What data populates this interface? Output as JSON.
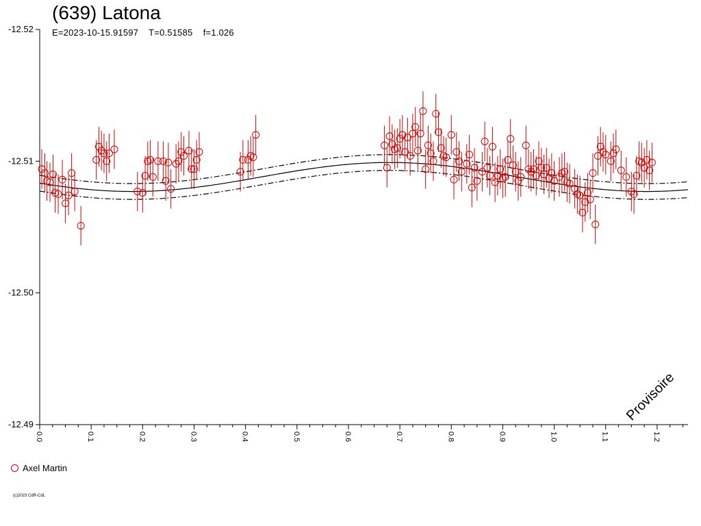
{
  "title": "(639) Latona",
  "subtitle": {
    "epoch": "E=2023-10-15.91597",
    "period": "T=0.51585",
    "f": "f=1.026"
  },
  "watermark": "Provisoire",
  "copyright": "(c)2023 CdR-CdL",
  "legend": [
    {
      "label": "Axel Martin",
      "color": "#d00000",
      "marker": "open-circle"
    }
  ],
  "chart_data": {
    "type": "scatter",
    "title": "(639) Latona",
    "x_range": [
      0,
      1.26
    ],
    "y_range": [
      -12.52,
      -12.49
    ],
    "y_inverted": true,
    "x_ticks": [
      "0.0",
      "0.1",
      "0.2",
      "0.3",
      "0.4",
      "0.5",
      "0.6",
      "0.7",
      "0.8",
      "0.9",
      "1.0",
      "1.1",
      "1.2"
    ],
    "y_ticks": [
      "-12.52",
      "-12.51",
      "-12.50",
      "-12.49"
    ],
    "model_curve": {
      "mean": -12.5088,
      "amplitude": 0.0011,
      "peak_phase": 0.68,
      "envelope": 0.0006,
      "color": "#000000"
    },
    "series": [
      {
        "name": "Axel Martin",
        "color": "#d00000",
        "error": 0.0015,
        "points": [
          [
            0.004,
            -12.5094
          ],
          [
            0.01,
            -12.5091
          ],
          [
            0.014,
            -12.5085
          ],
          [
            0.02,
            -12.5084
          ],
          [
            0.026,
            -12.509
          ],
          [
            0.03,
            -12.5076
          ],
          [
            0.036,
            -12.5075
          ],
          [
            0.044,
            -12.5086
          ],
          [
            0.05,
            -12.5068
          ],
          [
            0.056,
            -12.5074
          ],
          [
            0.062,
            -12.5091
          ],
          [
            0.068,
            -12.5077
          ],
          [
            0.08,
            -12.5051
          ],
          [
            0.11,
            -12.5101
          ],
          [
            0.115,
            -12.5111
          ],
          [
            0.12,
            -12.5108
          ],
          [
            0.125,
            -12.5106
          ],
          [
            0.13,
            -12.51
          ],
          [
            0.135,
            -12.5106
          ],
          [
            0.145,
            -12.5109
          ],
          [
            0.19,
            -12.5077
          ],
          [
            0.2,
            -12.5076
          ],
          [
            0.205,
            -12.5089
          ],
          [
            0.21,
            -12.51
          ],
          [
            0.215,
            -12.5101
          ],
          [
            0.22,
            -12.5088
          ],
          [
            0.23,
            -12.51
          ],
          [
            0.24,
            -12.51
          ],
          [
            0.245,
            -12.5085
          ],
          [
            0.25,
            -12.5099
          ],
          [
            0.255,
            -12.5079
          ],
          [
            0.265,
            -12.5098
          ],
          [
            0.27,
            -12.51
          ],
          [
            0.275,
            -12.5107
          ],
          [
            0.28,
            -12.5104
          ],
          [
            0.29,
            -12.5108
          ],
          [
            0.295,
            -12.5094
          ],
          [
            0.3,
            -12.5094
          ],
          [
            0.305,
            -12.5101
          ],
          [
            0.31,
            -12.5107
          ],
          [
            0.39,
            -12.5092
          ],
          [
            0.395,
            -12.5101
          ],
          [
            0.405,
            -12.5101
          ],
          [
            0.41,
            -12.5104
          ],
          [
            0.415,
            -12.5103
          ],
          [
            0.42,
            -12.512
          ],
          [
            0.67,
            -12.5112
          ],
          [
            0.675,
            -12.5095
          ],
          [
            0.68,
            -12.5119
          ],
          [
            0.685,
            -12.5113
          ],
          [
            0.69,
            -12.5109
          ],
          [
            0.695,
            -12.511
          ],
          [
            0.7,
            -12.5117
          ],
          [
            0.705,
            -12.512
          ],
          [
            0.71,
            -12.5107
          ],
          [
            0.715,
            -12.5118
          ],
          [
            0.72,
            -12.5104
          ],
          [
            0.725,
            -12.5121
          ],
          [
            0.73,
            -12.5126
          ],
          [
            0.735,
            -12.5108
          ],
          [
            0.74,
            -12.5121
          ],
          [
            0.745,
            -12.5138
          ],
          [
            0.75,
            -12.5094
          ],
          [
            0.755,
            -12.5112
          ],
          [
            0.76,
            -12.5106
          ],
          [
            0.765,
            -12.51
          ],
          [
            0.77,
            -12.5136
          ],
          [
            0.775,
            -12.5122
          ],
          [
            0.78,
            -12.511
          ],
          [
            0.785,
            -12.5104
          ],
          [
            0.79,
            -12.5103
          ],
          [
            0.8,
            -12.512
          ],
          [
            0.805,
            -12.5086
          ],
          [
            0.81,
            -12.5107
          ],
          [
            0.815,
            -12.51
          ],
          [
            0.82,
            -12.5092
          ],
          [
            0.83,
            -12.5098
          ],
          [
            0.835,
            -12.5105
          ],
          [
            0.84,
            -12.508
          ],
          [
            0.845,
            -12.5095
          ],
          [
            0.85,
            -12.5085
          ],
          [
            0.86,
            -12.5092
          ],
          [
            0.865,
            -12.5115
          ],
          [
            0.87,
            -12.5095
          ],
          [
            0.875,
            -12.5089
          ],
          [
            0.88,
            -12.5111
          ],
          [
            0.885,
            -12.5084
          ],
          [
            0.89,
            -12.5089
          ],
          [
            0.895,
            -12.5094
          ],
          [
            0.9,
            -12.5087
          ],
          [
            0.905,
            -12.5088
          ],
          [
            0.91,
            -12.5101
          ],
          [
            0.915,
            -12.5117
          ],
          [
            0.92,
            -12.5097
          ],
          [
            0.925,
            -12.5092
          ],
          [
            0.93,
            -12.5085
          ],
          [
            0.935,
            -12.5088
          ],
          [
            0.945,
            -12.5112
          ],
          [
            0.95,
            -12.5094
          ],
          [
            0.955,
            -12.5092
          ],
          [
            0.96,
            -12.5094
          ],
          [
            0.965,
            -12.5089
          ],
          [
            0.97,
            -12.51
          ],
          [
            0.975,
            -12.5095
          ],
          [
            0.98,
            -12.509
          ],
          [
            0.985,
            -12.5095
          ],
          [
            0.99,
            -12.5087
          ],
          [
            0.995,
            -12.5091
          ],
          [
            1.0,
            -12.5085
          ],
          [
            1.01,
            -12.5088
          ],
          [
            1.015,
            -12.5091
          ],
          [
            1.02,
            -12.5092
          ],
          [
            1.025,
            -12.5084
          ],
          [
            1.03,
            -12.5083
          ],
          [
            1.04,
            -12.5079
          ],
          [
            1.045,
            -12.5075
          ],
          [
            1.05,
            -12.5074
          ],
          [
            1.055,
            -12.5061
          ],
          [
            1.06,
            -12.5069
          ],
          [
            1.065,
            -12.5076
          ],
          [
            1.07,
            -12.5071
          ],
          [
            1.075,
            -12.5091
          ],
          [
            1.08,
            -12.5052
          ],
          [
            1.085,
            -12.5104
          ],
          [
            1.09,
            -12.5111
          ],
          [
            1.095,
            -12.5107
          ],
          [
            1.1,
            -12.5105
          ],
          [
            1.11,
            -12.51
          ],
          [
            1.115,
            -12.5106
          ],
          [
            1.12,
            -12.5109
          ],
          [
            1.13,
            -12.5093
          ],
          [
            1.14,
            -12.5088
          ],
          [
            1.15,
            -12.5077
          ],
          [
            1.155,
            -12.5075
          ],
          [
            1.16,
            -12.5089
          ],
          [
            1.165,
            -12.51
          ],
          [
            1.17,
            -12.5099
          ],
          [
            1.175,
            -12.5095
          ],
          [
            1.18,
            -12.5101
          ],
          [
            1.185,
            -12.5093
          ],
          [
            1.19,
            -12.5099
          ]
        ]
      }
    ]
  }
}
